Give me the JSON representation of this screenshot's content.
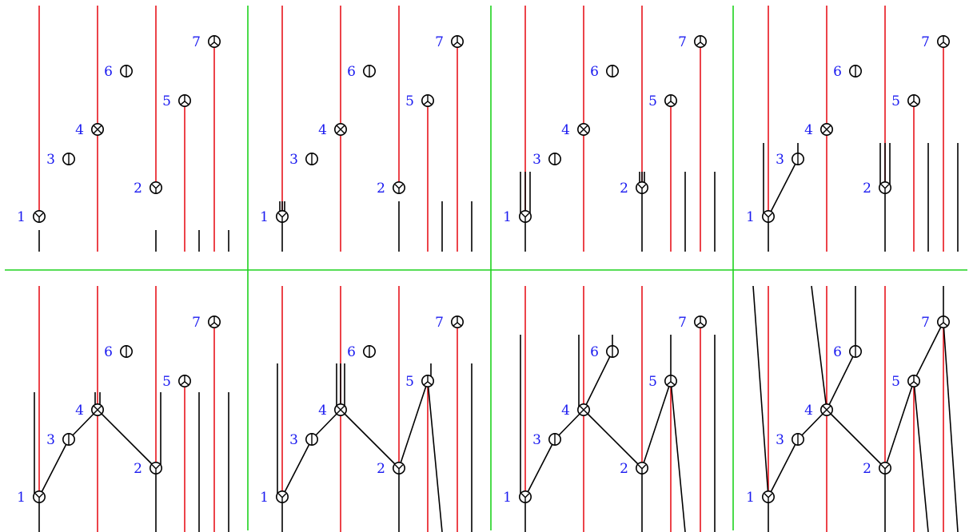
{
  "colors": {
    "red_worldline": "#e8141c",
    "black_edge": "#000000",
    "grid_green": "#1ed21e",
    "label_blue": "#1a1af0"
  },
  "nodes": [
    {
      "id": 1,
      "label": "1",
      "symbol": "Y-icon"
    },
    {
      "id": 2,
      "label": "2",
      "symbol": "Y-icon"
    },
    {
      "id": 3,
      "label": "3",
      "symbol": "bar-icon"
    },
    {
      "id": 4,
      "label": "4",
      "symbol": "x-icon"
    },
    {
      "id": 5,
      "label": "5",
      "symbol": "peace-icon"
    },
    {
      "id": 6,
      "label": "6",
      "symbol": "bar-icon"
    },
    {
      "id": 7,
      "label": "7",
      "symbol": "peace-icon"
    }
  ],
  "panels": [
    {
      "name": "step-1"
    },
    {
      "name": "step-2"
    },
    {
      "name": "step-3"
    },
    {
      "name": "step-4"
    },
    {
      "name": "step-5"
    },
    {
      "name": "step-6"
    },
    {
      "name": "step-7"
    },
    {
      "name": "step-8"
    }
  ]
}
